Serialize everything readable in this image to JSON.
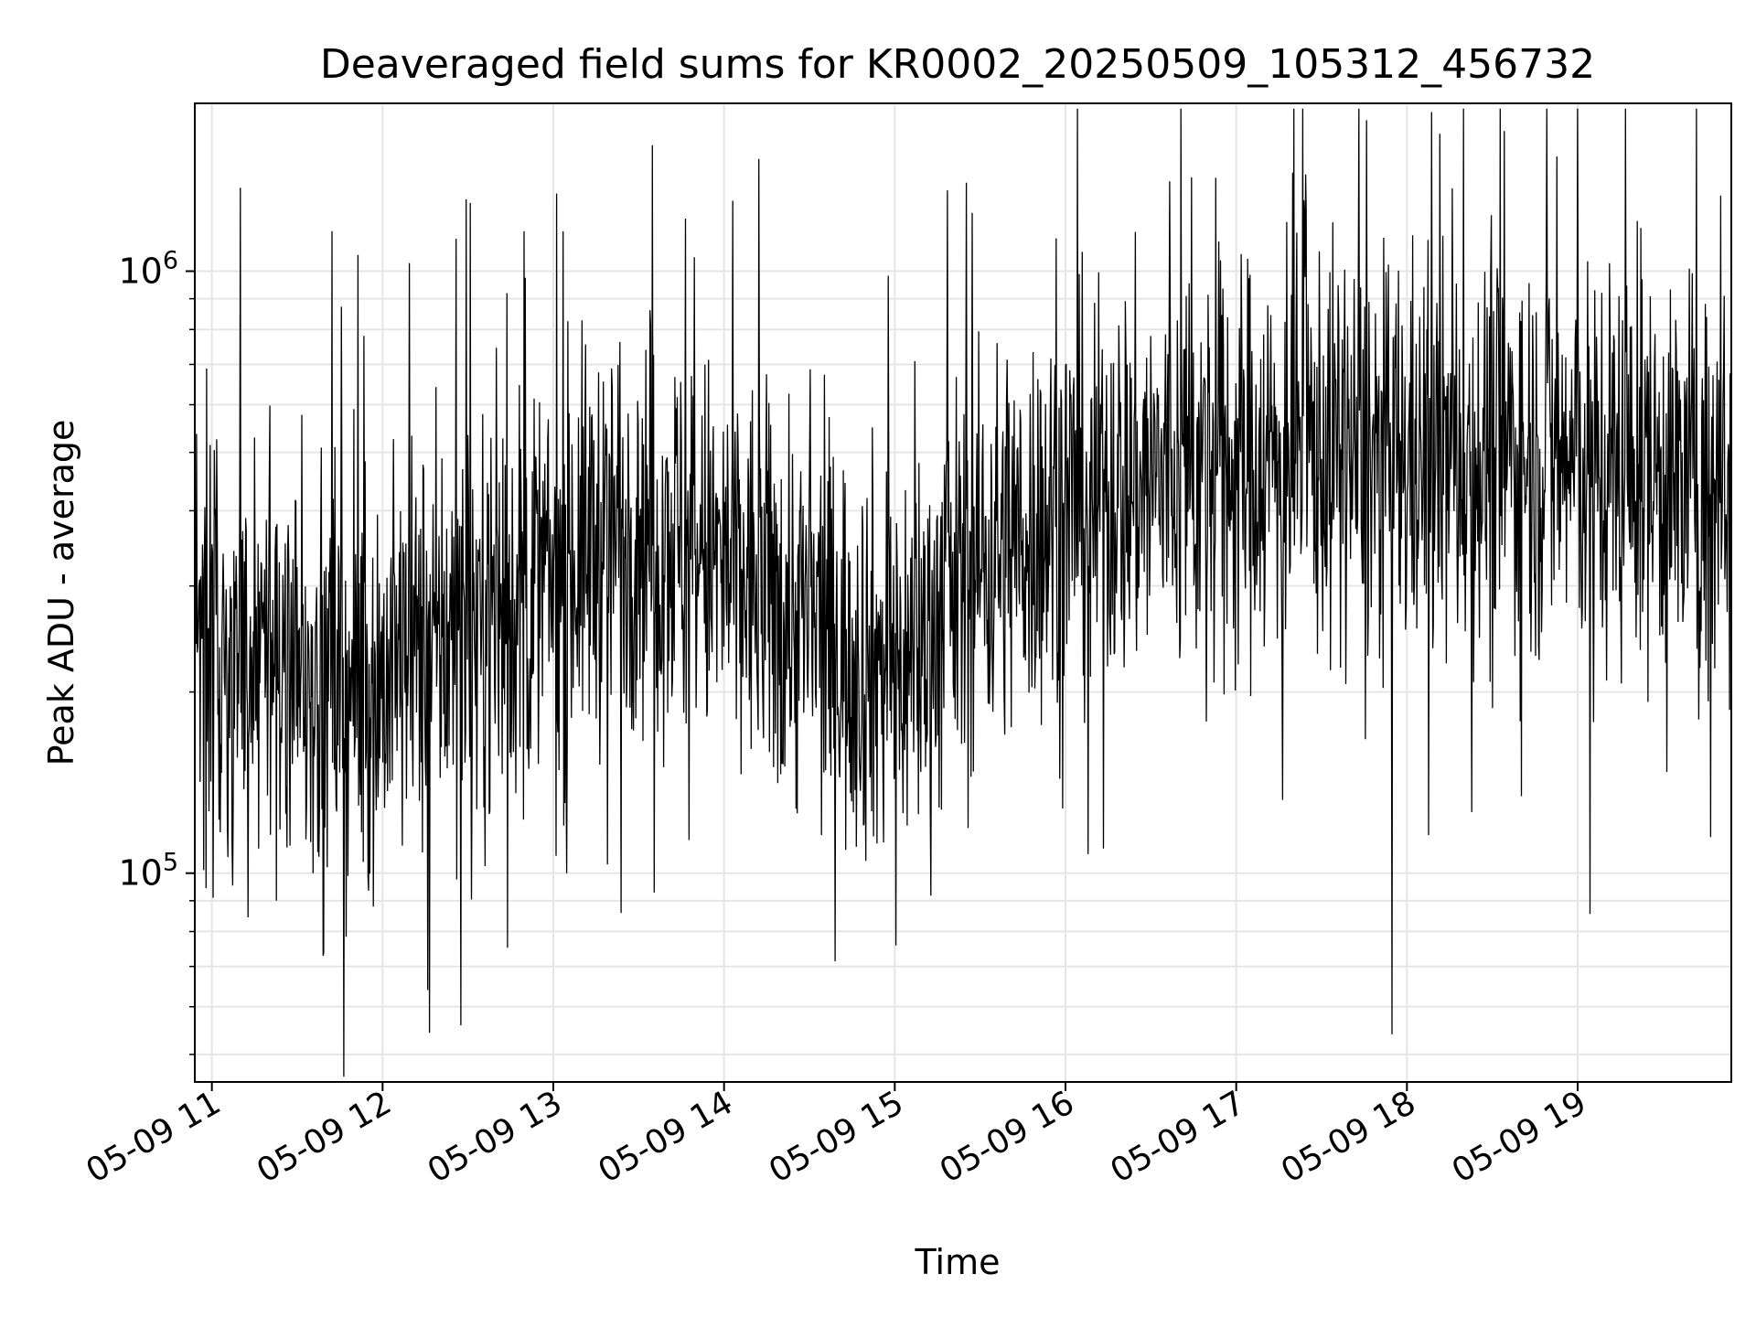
{
  "chart_data": {
    "type": "line",
    "title": "Deaveraged field sums for KR0002_20250509_105312_456732",
    "xlabel": "Time",
    "ylabel": "Peak ADU - average",
    "x_range": [
      "2025-05-09 10:54",
      "2025-05-09 19:54"
    ],
    "y_scale": "log",
    "y_range": [
      45000,
      1900000
    ],
    "grid": true,
    "line_color": "#000000",
    "grid_color": "#e5e5e5",
    "x_ticks": [
      {
        "time": "2025-05-09 11:00",
        "label": "05-09 11"
      },
      {
        "time": "2025-05-09 12:00",
        "label": "05-09 12"
      },
      {
        "time": "2025-05-09 13:00",
        "label": "05-09 13"
      },
      {
        "time": "2025-05-09 14:00",
        "label": "05-09 14"
      },
      {
        "time": "2025-05-09 15:00",
        "label": "05-09 15"
      },
      {
        "time": "2025-05-09 16:00",
        "label": "05-09 16"
      },
      {
        "time": "2025-05-09 17:00",
        "label": "05-09 17"
      },
      {
        "time": "2025-05-09 18:00",
        "label": "05-09 18"
      },
      {
        "time": "2025-05-09 19:00",
        "label": "05-09 19"
      }
    ],
    "y_major_ticks": [
      {
        "value": 100000,
        "base": "10",
        "exp": "5"
      },
      {
        "value": 1000000,
        "base": "10",
        "exp": "6"
      }
    ],
    "y_minor_ticks": [
      50000,
      60000,
      70000,
      80000,
      90000,
      200000,
      300000,
      400000,
      500000,
      600000,
      700000,
      800000,
      900000
    ],
    "series": [
      {
        "x": [
          "2025-05-09 10:54",
          "2025-05-09 11:00",
          "2025-05-09 11:10",
          "2025-05-09 11:20",
          "2025-05-09 11:30",
          "2025-05-09 11:40",
          "2025-05-09 11:50",
          "2025-05-09 12:00",
          "2025-05-09 12:10",
          "2025-05-09 12:20",
          "2025-05-09 12:30",
          "2025-05-09 12:40",
          "2025-05-09 12:50",
          "2025-05-09 13:00",
          "2025-05-09 13:10",
          "2025-05-09 13:20",
          "2025-05-09 13:30",
          "2025-05-09 13:40",
          "2025-05-09 13:50",
          "2025-05-09 14:00",
          "2025-05-09 14:10",
          "2025-05-09 14:20",
          "2025-05-09 14:30",
          "2025-05-09 14:40",
          "2025-05-09 14:50",
          "2025-05-09 15:00",
          "2025-05-09 15:10",
          "2025-05-09 15:20",
          "2025-05-09 15:30",
          "2025-05-09 15:40",
          "2025-05-09 15:50",
          "2025-05-09 16:00",
          "2025-05-09 16:10",
          "2025-05-09 16:20",
          "2025-05-09 16:30",
          "2025-05-09 16:40",
          "2025-05-09 16:50",
          "2025-05-09 17:00",
          "2025-05-09 17:10",
          "2025-05-09 17:20",
          "2025-05-09 17:30",
          "2025-05-09 17:40",
          "2025-05-09 17:50",
          "2025-05-09 18:00",
          "2025-05-09 18:10",
          "2025-05-09 18:20",
          "2025-05-09 18:30",
          "2025-05-09 18:40",
          "2025-05-09 18:50",
          "2025-05-09 19:00",
          "2025-05-09 19:10",
          "2025-05-09 19:20",
          "2025-05-09 19:30",
          "2025-05-09 19:40",
          "2025-05-09 19:50",
          "2025-05-09 19:54"
        ],
        "y": [
          300000,
          260000,
          240000,
          230000,
          220000,
          210000,
          200000,
          210000,
          230000,
          240000,
          260000,
          280000,
          290000,
          310000,
          340000,
          370000,
          390000,
          370000,
          340000,
          320000,
          300000,
          280000,
          260000,
          240000,
          230000,
          220000,
          240000,
          290000,
          330000,
          360000,
          380000,
          410000,
          430000,
          440000,
          450000,
          460000,
          470000,
          480000,
          490000,
          500000,
          500000,
          490000,
          490000,
          480000,
          480000,
          490000,
          500000,
          500000,
          490000,
          480000,
          480000,
          470000,
          460000,
          450000,
          460000,
          470000
        ],
        "y_min_noise_peaks": [
          70000,
          60000,
          70000,
          90000,
          50000
        ],
        "y_max_noise_peaks": [
          1300000,
          1300000,
          1600000,
          1500000,
          1200000
        ]
      }
    ]
  }
}
